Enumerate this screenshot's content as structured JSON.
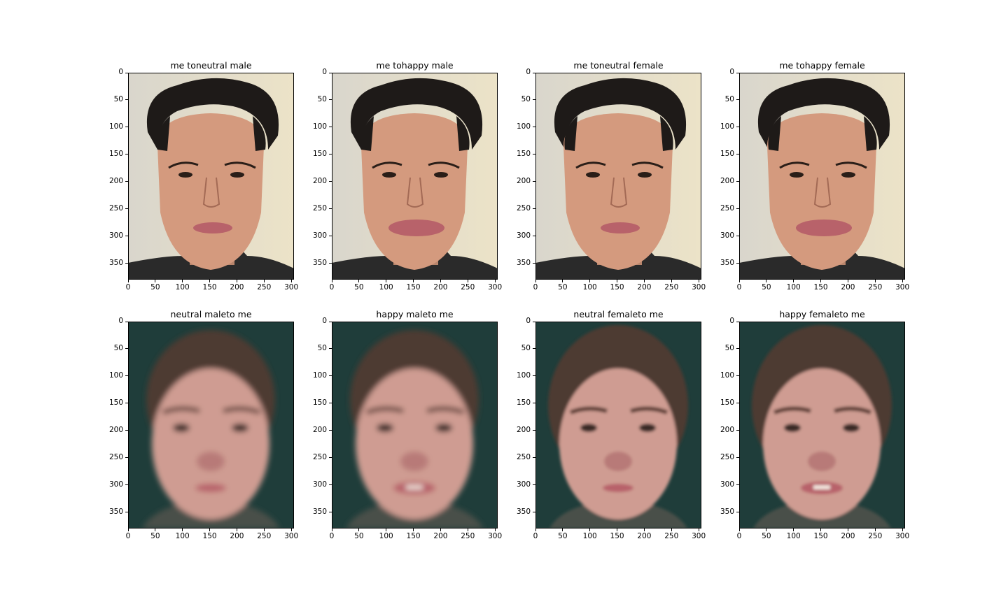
{
  "figure": {
    "panels": [
      {
        "title": "me toneutral male",
        "kind": "photo",
        "variant": "neutral",
        "expression": "neutral"
      },
      {
        "title": "me tohappy male",
        "kind": "photo",
        "variant": "neutral",
        "expression": "happy"
      },
      {
        "title": "me toneutral female",
        "kind": "photo",
        "variant": "female",
        "expression": "neutral"
      },
      {
        "title": "me tohappy female",
        "kind": "photo",
        "variant": "female",
        "expression": "happy"
      },
      {
        "title": "neutral maleto me",
        "kind": "average",
        "variant": "male",
        "expression": "neutral"
      },
      {
        "title": "happy maleto me",
        "kind": "average",
        "variant": "male",
        "expression": "happy"
      },
      {
        "title": "neutral femaleto me",
        "kind": "average",
        "variant": "female",
        "expression": "neutral"
      },
      {
        "title": "happy femaleto me",
        "kind": "average",
        "variant": "female",
        "expression": "happy"
      }
    ],
    "x_ticks": [
      "0",
      "50",
      "100",
      "150",
      "200",
      "250",
      "300"
    ],
    "y_ticks": [
      "0",
      "50",
      "100",
      "150",
      "200",
      "250",
      "300",
      "350"
    ],
    "x_tick_values": [
      0,
      50,
      100,
      150,
      200,
      250,
      300
    ],
    "y_tick_values": [
      0,
      50,
      100,
      150,
      200,
      250,
      300,
      350
    ],
    "x_range": [
      0,
      305
    ],
    "y_range": [
      0,
      380
    ],
    "colors": {
      "photo_background": "#ece3c8",
      "photo_skin": "#d49a7e",
      "photo_hair": "#1e1a18",
      "photo_shirt": "#2a2a2a",
      "average_background": "#1f3d3a",
      "average_skin": "#cf9c92",
      "average_hair": "#4d3a30",
      "lips": "#b8626a"
    }
  }
}
